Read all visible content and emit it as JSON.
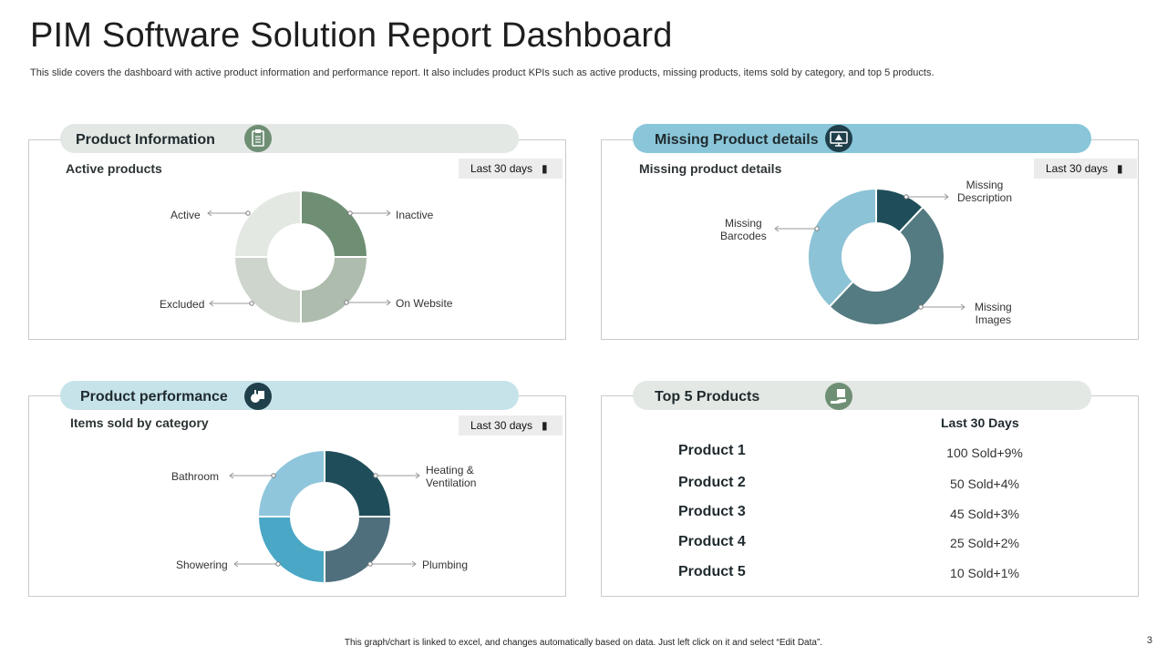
{
  "title": "PIM Software Solution Report Dashboard",
  "subtitle": "This slide covers the dashboard with active product information and performance report. It also includes product KPIs such as active products, missing products, items sold by category, and top 5 products.",
  "panels": {
    "product_information": {
      "label": "Product Information",
      "subtitle": "Active products",
      "period": "Last 30 days",
      "icon": "clipboard-icon"
    },
    "missing_product": {
      "label": "Missing  Product details",
      "subtitle": "Missing product details",
      "period": "Last 30 days",
      "icon": "warning-monitor-icon"
    },
    "product_performance": {
      "label": "Product performance",
      "subtitle": "Items sold by category",
      "period": "Last 30 days",
      "icon": "tag-icon"
    },
    "top5": {
      "label": "Top 5 Products",
      "column_header": "Last 30 Days",
      "icon": "box-hand-icon",
      "rows": [
        {
          "name": "Product 1",
          "value": "100 Sold+9%"
        },
        {
          "name": "Product 2",
          "value": "50 Sold+4%"
        },
        {
          "name": "Product 3",
          "value": "45 Sold+3%"
        },
        {
          "name": "Product 4",
          "value": "25 Sold+2%"
        },
        {
          "name": "Product 5",
          "value": "10 Sold+1%"
        }
      ]
    }
  },
  "chart_data": [
    {
      "type": "pie",
      "title": "Active products",
      "categories": [
        "Inactive",
        "On Website",
        "Excluded",
        "Active"
      ],
      "values": [
        25,
        25,
        25,
        25
      ],
      "colors": [
        "#6f8f75",
        "#aebcad",
        "#cdd5cc",
        "#e3e8e3"
      ],
      "legend_labels": [
        "Active",
        "Inactive",
        "Excluded",
        "On Website"
      ]
    },
    {
      "type": "pie",
      "title": "Missing product details",
      "categories": [
        "Missing Description",
        "Missing Images",
        "Missing Barcodes"
      ],
      "values": [
        12,
        50,
        38
      ],
      "colors": [
        "#1f4e5a",
        "#547a82",
        "#8dc3d6"
      ],
      "legend_labels": [
        "Missing Description",
        "Missing Barcodes",
        "Missing Images"
      ]
    },
    {
      "type": "pie",
      "title": "Items sold by category",
      "categories": [
        "Heating & Ventilation",
        "Plumbing",
        "Showering",
        "Bathroom"
      ],
      "values": [
        25,
        25,
        25,
        25
      ],
      "colors": [
        "#1f4e5a",
        "#4f6f7d",
        "#4aa7c5",
        "#8fc6db"
      ],
      "legend_labels": [
        "Bathroom",
        "Heating & Ventilation",
        "Showering",
        "Plumbing"
      ]
    }
  ],
  "footer": "This graph/chart is linked to excel, and changes automatically based on data. Just left click on it and select “Edit Data”.",
  "page_number": "3"
}
